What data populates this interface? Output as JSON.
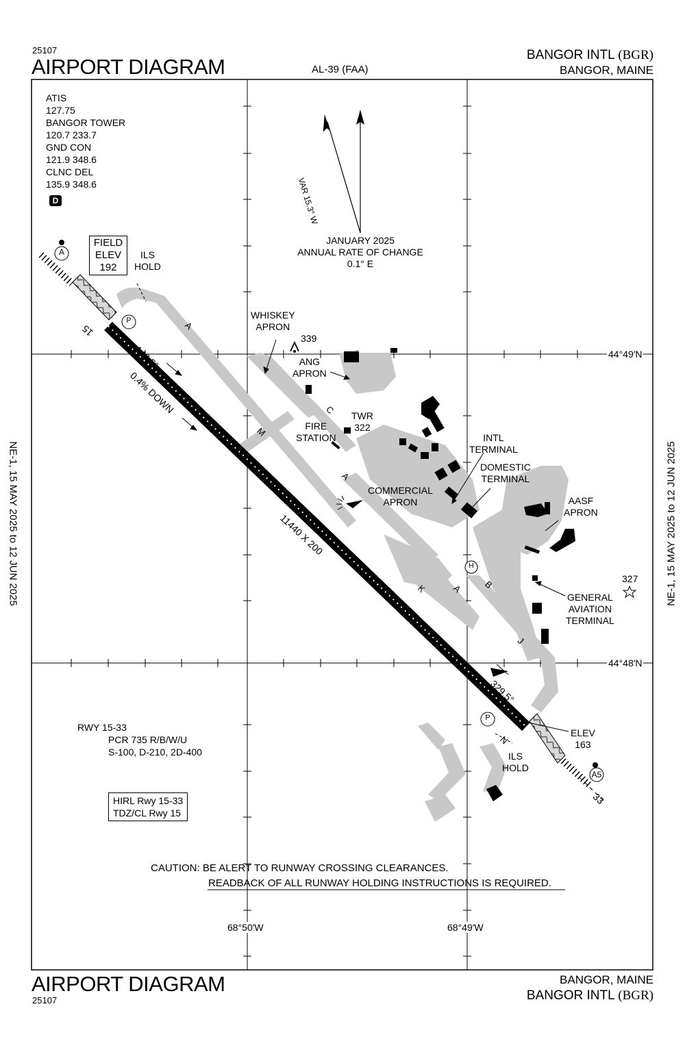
{
  "header": {
    "procedure_number": "25107",
    "title": "AIRPORT DIAGRAM",
    "chart_ref": "AL-39 (FAA)",
    "airport": "BANGOR INTL",
    "airport_id": "(BGR)",
    "city": "BANGOR, MAINE"
  },
  "footer": {
    "title": "AIRPORT DIAGRAM",
    "procedure_number": "25107",
    "city": "BANGOR, MAINE",
    "airport": "BANGOR INTL",
    "airport_id": "(BGR)"
  },
  "side_labels": {
    "left": "NE-1,  15 MAY 2025  to  12 JUN 2025",
    "right": "NE-1,  15 MAY 2025  to  12 JUN 2025"
  },
  "frequencies": {
    "atis_label": "ATIS",
    "atis": "127.75",
    "tower_label": "BANGOR TOWER",
    "tower": "120.7  233.7",
    "gnd_label": "GND CON",
    "gnd": "121.9  348.6",
    "clnc_label": "CLNC DEL",
    "clnc": "135.9  348.6",
    "d_badge": "D"
  },
  "magnetic": {
    "var_label": "VAR 15.3° W",
    "date_line": "JANUARY 2025",
    "rate_line": "ANNUAL RATE OF CHANGE",
    "rate_value": "0.1° E"
  },
  "field_elev": {
    "line1": "FIELD",
    "line2": "ELEV",
    "value": "192"
  },
  "runway": {
    "end_15": "15",
    "end_33": "33",
    "heading_15": "149.5°",
    "heading_33": "329.5°",
    "slope": "0.4% DOWN",
    "dimensions": "11440 X 200",
    "elev_label": "ELEV",
    "elev_value": "163"
  },
  "labels": {
    "ils_hold_1a": "ILS",
    "ils_hold_1b": "HOLD",
    "ils_hold_2a": "ILS",
    "ils_hold_2b": "HOLD",
    "whiskey_apron_1": "WHISKEY",
    "whiskey_apron_2": "APRON",
    "obstacle_339": "339",
    "ang_apron_1": "ANG",
    "ang_apron_2": "APRON",
    "fire_station_1": "FIRE",
    "fire_station_2": "STATION",
    "twr_1": "TWR",
    "twr_2": "322",
    "intl_terminal_1": "INTL",
    "intl_terminal_2": "TERMINAL",
    "domestic_terminal_1": "DOMESTIC",
    "domestic_terminal_2": "TERMINAL",
    "commercial_apron_1": "COMMERCIAL",
    "commercial_apron_2": "APRON",
    "aasf_apron_1": "AASF",
    "aasf_apron_2": "APRON",
    "obstacle_327": "327",
    "ga_terminal_1": "GENERAL",
    "ga_terminal_2": "AVIATION",
    "ga_terminal_3": "TERMINAL",
    "hot_spot_a": "A",
    "hot_spot_a5": "A5",
    "parking_p": "P",
    "heliport_h": "H"
  },
  "taxiways": {
    "a1": "A",
    "a2": "A",
    "a3": "A",
    "c": "C",
    "m": "M",
    "k": "K",
    "b": "B",
    "j": "J",
    "n": "N"
  },
  "coordinates": {
    "lat_1": "44°49′N",
    "lat_2": "44°48′N",
    "lon_1": "68°50′W",
    "lon_2": "68°49′W"
  },
  "rwy_info": {
    "title": "RWY 15-33",
    "pcr": "PCR 735 R/B/W/U",
    "strength": "S-100, D-210, 2D-400"
  },
  "lighting": {
    "line1": "HIRL Rwy 15-33",
    "line2": "TDZ/CL Rwy 15"
  },
  "caution": {
    "line1": "CAUTION: BE ALERT TO RUNWAY CROSSING CLEARANCES.",
    "line2": "READBACK OF ALL RUNWAY HOLDING INSTRUCTIONS IS REQUIRED."
  },
  "colors": {
    "pavement": "#c8c8c8",
    "runway": "#000000",
    "building": "#000000",
    "ink": "#000000"
  }
}
